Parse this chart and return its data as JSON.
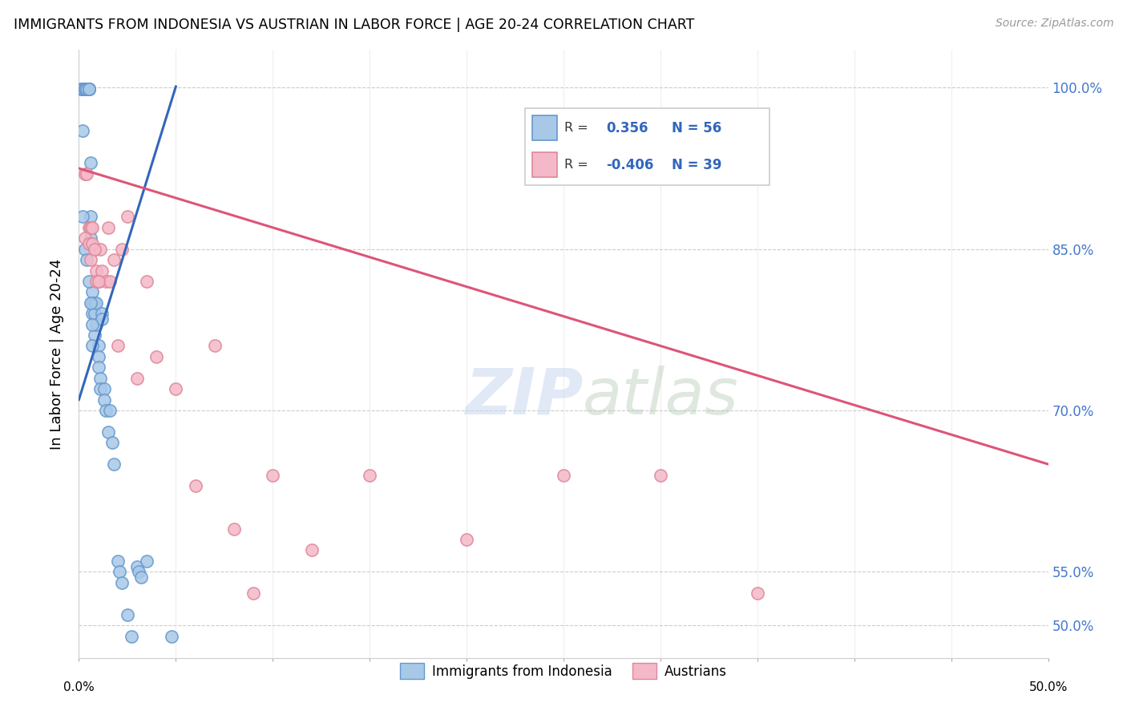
{
  "title": "IMMIGRANTS FROM INDONESIA VS AUSTRIAN IN LABOR FORCE | AGE 20-24 CORRELATION CHART",
  "source": "Source: ZipAtlas.com",
  "ylabel": "In Labor Force | Age 20-24",
  "ytick_vals": [
    0.5,
    0.55,
    0.7,
    0.85,
    1.0
  ],
  "ytick_labels": [
    "50.0%",
    "55.0%",
    "70.0%",
    "85.0%",
    "100.0%"
  ],
  "xlim": [
    0.0,
    0.5
  ],
  "ylim": [
    0.47,
    1.035
  ],
  "legend_r_blue": "0.356",
  "legend_n_blue": "56",
  "legend_r_pink": "-0.406",
  "legend_n_pink": "39",
  "color_blue": "#a8c8e8",
  "color_blue_edge": "#6699cc",
  "color_pink": "#f5b8c8",
  "color_pink_edge": "#dd8899",
  "color_blue_line": "#3366bb",
  "color_pink_line": "#dd5577",
  "blue_scatter_x": [
    0.001,
    0.002,
    0.002,
    0.003,
    0.003,
    0.003,
    0.004,
    0.004,
    0.005,
    0.005,
    0.005,
    0.005,
    0.006,
    0.006,
    0.006,
    0.006,
    0.007,
    0.007,
    0.007,
    0.008,
    0.008,
    0.008,
    0.009,
    0.009,
    0.01,
    0.01,
    0.01,
    0.011,
    0.011,
    0.012,
    0.012,
    0.013,
    0.013,
    0.014,
    0.015,
    0.016,
    0.017,
    0.018,
    0.02,
    0.021,
    0.022,
    0.025,
    0.027,
    0.03,
    0.031,
    0.032,
    0.035,
    0.048,
    0.002,
    0.002,
    0.003,
    0.004,
    0.005,
    0.006,
    0.007,
    0.007
  ],
  "blue_scatter_y": [
    0.999,
    0.999,
    0.999,
    0.999,
    0.999,
    0.999,
    0.999,
    0.999,
    0.999,
    0.999,
    0.999,
    0.999,
    0.93,
    0.88,
    0.87,
    0.86,
    0.81,
    0.8,
    0.79,
    0.8,
    0.79,
    0.77,
    0.8,
    0.78,
    0.76,
    0.75,
    0.74,
    0.73,
    0.72,
    0.79,
    0.785,
    0.72,
    0.71,
    0.7,
    0.68,
    0.7,
    0.67,
    0.65,
    0.56,
    0.55,
    0.54,
    0.51,
    0.49,
    0.555,
    0.55,
    0.545,
    0.56,
    0.49,
    0.96,
    0.88,
    0.85,
    0.84,
    0.82,
    0.8,
    0.78,
    0.76
  ],
  "pink_scatter_x": [
    0.005,
    0.006,
    0.007,
    0.008,
    0.009,
    0.01,
    0.011,
    0.012,
    0.014,
    0.015,
    0.016,
    0.018,
    0.02,
    0.022,
    0.025,
    0.03,
    0.035,
    0.04,
    0.05,
    0.06,
    0.07,
    0.08,
    0.09,
    0.1,
    0.12,
    0.15,
    0.2,
    0.25,
    0.3,
    0.35,
    0.003,
    0.003,
    0.004,
    0.005,
    0.006,
    0.007,
    0.008,
    0.009,
    0.01
  ],
  "pink_scatter_y": [
    0.87,
    0.87,
    0.87,
    0.85,
    0.83,
    0.82,
    0.85,
    0.83,
    0.82,
    0.87,
    0.82,
    0.84,
    0.76,
    0.85,
    0.88,
    0.73,
    0.82,
    0.75,
    0.72,
    0.63,
    0.76,
    0.59,
    0.53,
    0.64,
    0.57,
    0.64,
    0.58,
    0.64,
    0.64,
    0.53,
    0.92,
    0.86,
    0.92,
    0.855,
    0.84,
    0.855,
    0.85,
    0.82,
    0.82
  ],
  "blue_line_x": [
    0.0,
    0.05
  ],
  "blue_line_y": [
    0.71,
    1.001
  ],
  "pink_line_x": [
    0.0,
    0.5
  ],
  "pink_line_y": [
    0.925,
    0.65
  ]
}
